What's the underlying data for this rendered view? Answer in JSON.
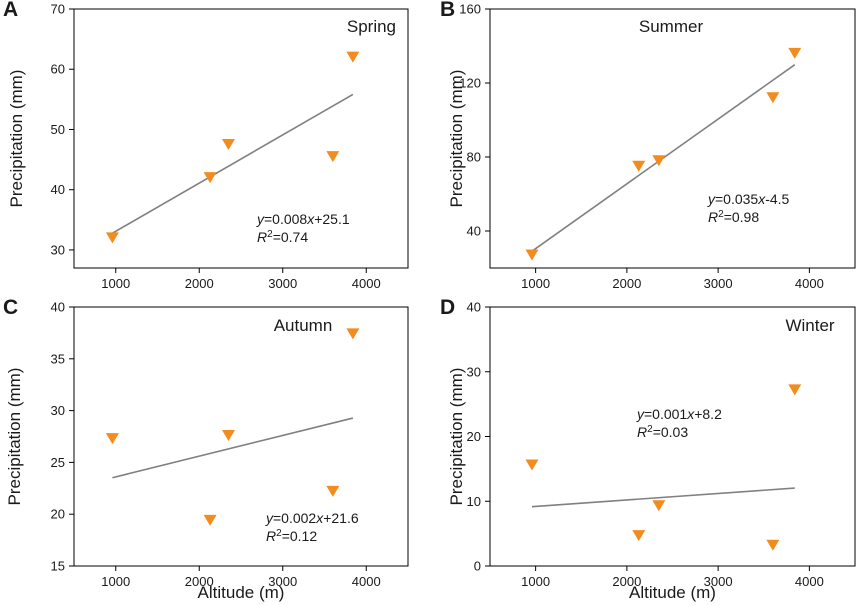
{
  "chart_data": [
    {
      "type": "scatter",
      "panel_label": "A",
      "season": "Spring",
      "xlabel": "",
      "ylabel": "Precipitation (mm)",
      "xlim": [
        500,
        4500
      ],
      "ylim": [
        27,
        70
      ],
      "xticks": [
        1000,
        2000,
        3000,
        4000
      ],
      "yticks": [
        30,
        40,
        50,
        60,
        70
      ],
      "points": [
        {
          "x": 960,
          "y": 32
        },
        {
          "x": 2130,
          "y": 42
        },
        {
          "x": 2350,
          "y": 47.5
        },
        {
          "x": 3600,
          "y": 45.5
        },
        {
          "x": 3840,
          "y": 62
        }
      ],
      "fit": {
        "slope": 0.008,
        "intercept": 25.1,
        "x_range": [
          960,
          3840
        ]
      },
      "equation": {
        "y": "y",
        "rest": "=0.008",
        "x": "x",
        "tail": "+25.1",
        "r": "R",
        "sup": "2",
        "r2": "=0.74"
      }
    },
    {
      "type": "scatter",
      "panel_label": "B",
      "season": "Summer",
      "xlabel": "",
      "ylabel": "Precipitation (mm)",
      "xlim": [
        500,
        4500
      ],
      "ylim": [
        20,
        160
      ],
      "xticks": [
        1000,
        2000,
        3000,
        4000
      ],
      "yticks": [
        40,
        80,
        120,
        160
      ],
      "points": [
        {
          "x": 960,
          "y": 27
        },
        {
          "x": 2130,
          "y": 75
        },
        {
          "x": 2350,
          "y": 78
        },
        {
          "x": 3600,
          "y": 112
        },
        {
          "x": 3840,
          "y": 136
        }
      ],
      "fit": {
        "slope": 0.035,
        "intercept": -4.5,
        "x_range": [
          960,
          3840
        ]
      },
      "equation": {
        "y": "y",
        "rest": "=0.035",
        "x": "x",
        "tail": "-4.5",
        "r": "R",
        "sup": "2",
        "r2": "=0.98"
      }
    },
    {
      "type": "scatter",
      "panel_label": "C",
      "season": "Autumn",
      "xlabel": "Altitude (m)",
      "ylabel": "Precipitation (mm)",
      "xlim": [
        500,
        4500
      ],
      "ylim": [
        15,
        40
      ],
      "xticks": [
        1000,
        2000,
        3000,
        4000
      ],
      "yticks": [
        15,
        20,
        25,
        30,
        35,
        40
      ],
      "points": [
        {
          "x": 960,
          "y": 27.3
        },
        {
          "x": 2130,
          "y": 19.4
        },
        {
          "x": 2350,
          "y": 27.6
        },
        {
          "x": 3600,
          "y": 22.2
        },
        {
          "x": 3840,
          "y": 37.4
        }
      ],
      "fit": {
        "slope": 0.002,
        "intercept": 21.6,
        "x_range": [
          960,
          3840
        ]
      },
      "equation": {
        "y": "y",
        "rest": "=0.002",
        "x": "x",
        "tail": "+21.6",
        "r": "R",
        "sup": "2",
        "r2": "=0.12"
      }
    },
    {
      "type": "scatter",
      "panel_label": "D",
      "season": "Winter",
      "xlabel": "Altitude (m)",
      "ylabel": "Precipitation (mm)",
      "xlim": [
        500,
        4500
      ],
      "ylim": [
        0,
        40
      ],
      "xticks": [
        1000,
        2000,
        3000,
        4000
      ],
      "yticks": [
        0,
        10,
        20,
        30,
        40
      ],
      "points": [
        {
          "x": 960,
          "y": 15.6
        },
        {
          "x": 2130,
          "y": 4.7
        },
        {
          "x": 2350,
          "y": 9.3
        },
        {
          "x": 3600,
          "y": 3.2
        },
        {
          "x": 3840,
          "y": 27.2
        }
      ],
      "fit": {
        "slope": 0.001,
        "intercept": 8.2,
        "x_range": [
          960,
          3840
        ]
      },
      "equation": {
        "y": "y",
        "rest": "=0.001",
        "x": "x",
        "tail": "+8.2",
        "r": "R",
        "sup": "2",
        "r2": "=0.03"
      }
    }
  ],
  "colors": {
    "marker": "#f28c1e",
    "fit_line": "#808080",
    "axis": "#000000"
  }
}
